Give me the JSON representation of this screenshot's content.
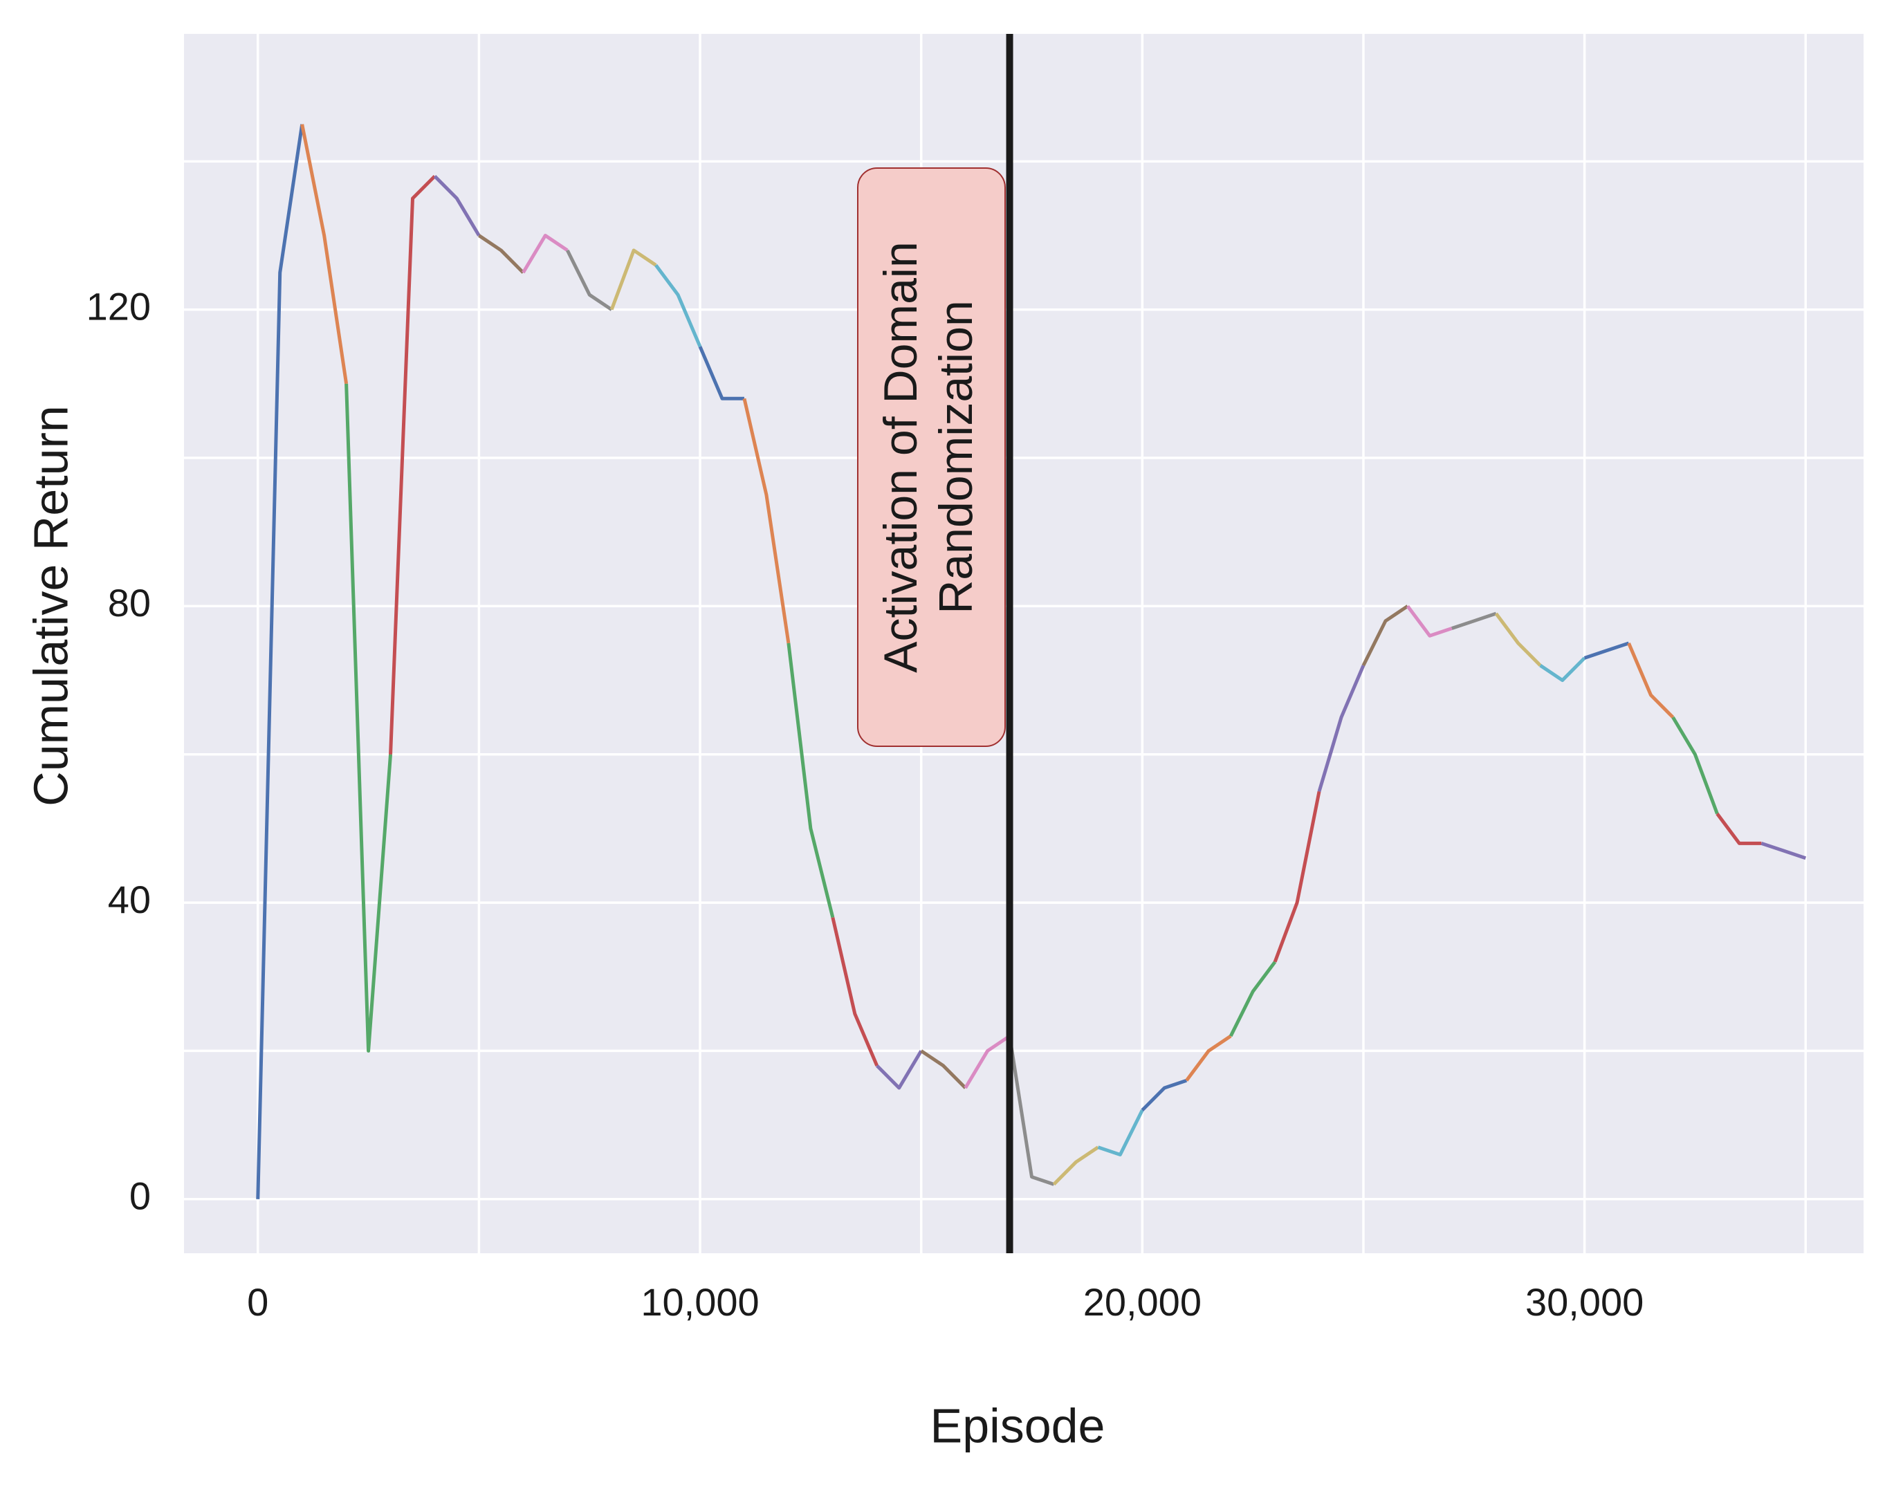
{
  "chart_data": {
    "type": "line",
    "xlabel": "Episode",
    "ylabel": "Cumulative Return",
    "xlim": [
      -1670,
      36310
    ],
    "ylim": [
      -7.3,
      157.2
    ],
    "xticks": [
      0,
      {
        "value": 10000,
        "label": "10,000"
      },
      {
        "value": 20000,
        "label": "20,000"
      },
      {
        "value": 30000,
        "label": "30,000"
      }
    ],
    "xgrid_minor": [
      5000,
      15000,
      25000,
      35000
    ],
    "yticks": [
      0,
      40,
      80,
      120
    ],
    "ygrid_minor": [
      20,
      60,
      100,
      140
    ],
    "grid": true,
    "background": "#eaeaf2",
    "vline": {
      "x": 17000,
      "color": "#1a1a1a"
    },
    "annotation": [
      "Activation of Domain",
      "Randomization"
    ],
    "series": [
      {
        "color": "#4c72b0",
        "x": [
          0,
          500,
          1000
        ],
        "values": [
          0,
          125,
          145
        ]
      },
      {
        "color": "#dd8452",
        "x": [
          1000,
          1500,
          2000
        ],
        "values": [
          145,
          130,
          110
        ]
      },
      {
        "color": "#55a868",
        "x": [
          2000,
          2500,
          3000
        ],
        "values": [
          110,
          20,
          60
        ]
      },
      {
        "color": "#c44e52",
        "x": [
          3000,
          3500,
          4000
        ],
        "values": [
          60,
          135,
          138
        ]
      },
      {
        "color": "#8172b3",
        "x": [
          4000,
          4500,
          5000
        ],
        "values": [
          138,
          135,
          130
        ]
      },
      {
        "color": "#937860",
        "x": [
          5000,
          5500,
          6000
        ],
        "values": [
          130,
          128,
          125
        ]
      },
      {
        "color": "#da8bc3",
        "x": [
          6000,
          6500,
          7000
        ],
        "values": [
          125,
          130,
          128
        ]
      },
      {
        "color": "#8c8c8c",
        "x": [
          7000,
          7500,
          8000
        ],
        "values": [
          128,
          122,
          120
        ]
      },
      {
        "color": "#ccb974",
        "x": [
          8000,
          8500,
          9000
        ],
        "values": [
          120,
          128,
          126
        ]
      },
      {
        "color": "#64b5cd",
        "x": [
          9000,
          9500,
          10000
        ],
        "values": [
          126,
          122,
          115
        ]
      },
      {
        "color": "#4c72b0",
        "x": [
          10000,
          10500,
          11000
        ],
        "values": [
          115,
          108,
          108
        ]
      },
      {
        "color": "#dd8452",
        "x": [
          11000,
          11500,
          12000
        ],
        "values": [
          108,
          95,
          75
        ]
      },
      {
        "color": "#55a868",
        "x": [
          12000,
          12500,
          13000
        ],
        "values": [
          75,
          50,
          38
        ]
      },
      {
        "color": "#c44e52",
        "x": [
          13000,
          13500,
          14000
        ],
        "values": [
          38,
          25,
          18
        ]
      },
      {
        "color": "#8172b3",
        "x": [
          14000,
          14500,
          15000
        ],
        "values": [
          18,
          15,
          20
        ]
      },
      {
        "color": "#937860",
        "x": [
          15000,
          15500,
          16000
        ],
        "values": [
          20,
          18,
          15
        ]
      },
      {
        "color": "#da8bc3",
        "x": [
          16000,
          16500,
          17000
        ],
        "values": [
          15,
          20,
          22
        ]
      },
      {
        "color": "#8c8c8c",
        "x": [
          17000,
          17500,
          18000
        ],
        "values": [
          22,
          3,
          2
        ]
      },
      {
        "color": "#ccb974",
        "x": [
          18000,
          18500,
          19000
        ],
        "values": [
          2,
          5,
          7
        ]
      },
      {
        "color": "#64b5cd",
        "x": [
          19000,
          19500,
          20000
        ],
        "values": [
          7,
          6,
          12
        ]
      },
      {
        "color": "#4c72b0",
        "x": [
          20000,
          20500,
          21000
        ],
        "values": [
          12,
          15,
          16
        ]
      },
      {
        "color": "#dd8452",
        "x": [
          21000,
          21500,
          22000
        ],
        "values": [
          16,
          20,
          22
        ]
      },
      {
        "color": "#55a868",
        "x": [
          22000,
          22500,
          23000
        ],
        "values": [
          22,
          28,
          32
        ]
      },
      {
        "color": "#c44e52",
        "x": [
          23000,
          23500,
          24000
        ],
        "values": [
          32,
          40,
          55
        ]
      },
      {
        "color": "#8172b3",
        "x": [
          24000,
          24500,
          25000
        ],
        "values": [
          55,
          65,
          72
        ]
      },
      {
        "color": "#937860",
        "x": [
          25000,
          25500,
          26000
        ],
        "values": [
          72,
          78,
          80
        ]
      },
      {
        "color": "#da8bc3",
        "x": [
          26000,
          26500,
          27000
        ],
        "values": [
          80,
          76,
          77
        ]
      },
      {
        "color": "#8c8c8c",
        "x": [
          27000,
          27500,
          28000
        ],
        "values": [
          77,
          78,
          79
        ]
      },
      {
        "color": "#ccb974",
        "x": [
          28000,
          28500,
          29000
        ],
        "values": [
          79,
          75,
          72
        ]
      },
      {
        "color": "#64b5cd",
        "x": [
          29000,
          29500,
          30000
        ],
        "values": [
          72,
          70,
          73
        ]
      },
      {
        "color": "#4c72b0",
        "x": [
          30000,
          30500,
          31000
        ],
        "values": [
          73,
          74,
          75
        ]
      },
      {
        "color": "#dd8452",
        "x": [
          31000,
          31500,
          32000
        ],
        "values": [
          75,
          68,
          65
        ]
      },
      {
        "color": "#55a868",
        "x": [
          32000,
          32500,
          33000
        ],
        "values": [
          65,
          60,
          52
        ]
      },
      {
        "color": "#c44e52",
        "x": [
          33000,
          33500,
          34000
        ],
        "values": [
          52,
          48,
          48
        ]
      },
      {
        "color": "#8172b3",
        "x": [
          34000,
          34500,
          35000
        ],
        "values": [
          48,
          47,
          46
        ]
      }
    ]
  }
}
